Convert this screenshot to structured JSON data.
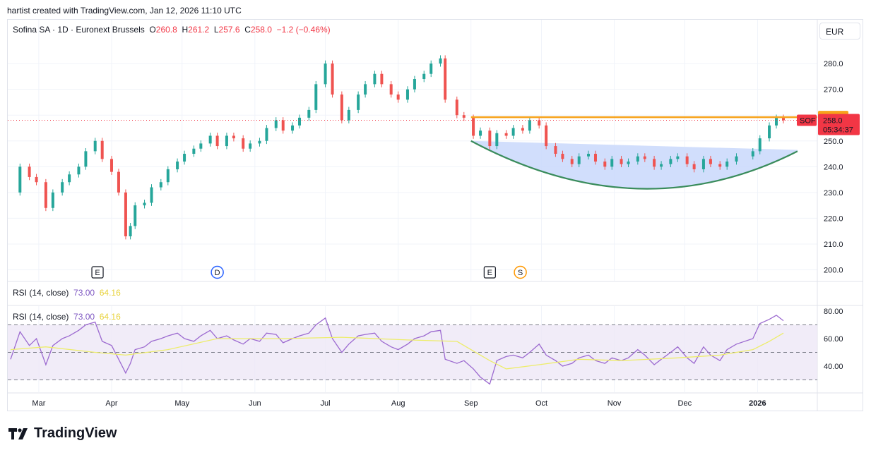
{
  "header": {
    "created_by": "hartist created with TradingView.com, Jan 12, 2026 11:10 UTC"
  },
  "legend": {
    "symbol": "Sofina SA · 1D · Euronext Brussels",
    "o_label": "O",
    "o_value": "260.8",
    "h_label": "H",
    "h_value": "261.2",
    "l_label": "L",
    "l_value": "257.6",
    "c_label": "C",
    "c_value": "258.0",
    "change": "−1.2 (−0.46%)"
  },
  "currency": "EUR",
  "rsi_legend": {
    "label": "RSI (14, close)",
    "rsi": "73.00",
    "ma": "64.16"
  },
  "badges": {
    "level": "259.2",
    "price": "258.0",
    "ticker": "SOF",
    "countdown": "05:34:37"
  },
  "events": [
    {
      "date": "2025-03-26",
      "letter": "E",
      "kind": "earnings"
    },
    {
      "date": "2025-05-16",
      "letter": "D",
      "kind": "dividend"
    },
    {
      "date": "2025-09-09",
      "letter": "E",
      "kind": "earnings"
    },
    {
      "date": "2025-09-22",
      "letter": "S",
      "kind": "split"
    }
  ],
  "brand": "TradingView",
  "colors": {
    "up": "#26a69a",
    "down": "#ef5350",
    "resistance": "#f7a21b",
    "cup_line": "#3a8c5c",
    "cup_fill": "#c9d8fb",
    "rsi": "#9c6ad0",
    "rsi_ma": "#eded6a",
    "rsi_band": "#ede7f6",
    "price_badge": "#f23645"
  },
  "chart_data": {
    "type": "candlestick",
    "x_labels": [
      "Mar",
      "Apr",
      "May",
      "Jun",
      "Jul",
      "Aug",
      "Sep",
      "Oct",
      "Nov",
      "Dec",
      "2026"
    ],
    "x_label_dates": [
      "2025-03-01",
      "2025-04-01",
      "2025-05-01",
      "2025-06-01",
      "2025-07-01",
      "2025-08-01",
      "2025-09-01",
      "2025-10-01",
      "2025-11-01",
      "2025-12-01",
      "2026-01-01"
    ],
    "price_ticks": [
      200.0,
      210.0,
      220.0,
      230.0,
      240.0,
      250.0,
      260.0,
      270.0,
      280.0
    ],
    "price_tick_labels": [
      "200.0",
      "210.0",
      "220.0",
      "230.0",
      "240.0",
      "250.0",
      "260.0",
      "270.0",
      "280.0"
    ],
    "rsi_ticks": [
      40.0,
      60.0,
      80.0
    ],
    "rsi_tick_labels": [
      "40.00",
      "60.00",
      "80.00"
    ],
    "rsi_levels": [
      30,
      50,
      70
    ],
    "resistance_level": 259.2,
    "resistance_start": "2025-09-01",
    "close_series": [
      [
        "2025-02-17",
        230
      ],
      [
        "2025-02-21",
        240
      ],
      [
        "2025-02-25",
        236
      ],
      [
        "2025-02-28",
        234
      ],
      [
        "2025-03-04",
        224
      ],
      [
        "2025-03-07",
        230
      ],
      [
        "2025-03-11",
        234
      ],
      [
        "2025-03-14",
        237
      ],
      [
        "2025-03-18",
        240
      ],
      [
        "2025-03-21",
        246
      ],
      [
        "2025-03-25",
        250
      ],
      [
        "2025-03-28",
        243
      ],
      [
        "2025-04-01",
        238
      ],
      [
        "2025-04-04",
        230
      ],
      [
        "2025-04-07",
        213
      ],
      [
        "2025-04-09",
        217
      ],
      [
        "2025-04-11",
        225
      ],
      [
        "2025-04-15",
        226
      ],
      [
        "2025-04-18",
        232
      ],
      [
        "2025-04-22",
        234
      ],
      [
        "2025-04-25",
        239
      ],
      [
        "2025-04-29",
        242
      ],
      [
        "2025-05-02",
        245
      ],
      [
        "2025-05-06",
        247
      ],
      [
        "2025-05-09",
        249
      ],
      [
        "2025-05-13",
        252
      ],
      [
        "2025-05-16",
        248
      ],
      [
        "2025-05-20",
        252
      ],
      [
        "2025-05-23",
        251
      ],
      [
        "2025-05-27",
        247
      ],
      [
        "2025-05-30",
        249
      ],
      [
        "2025-06-03",
        250
      ],
      [
        "2025-06-06",
        255
      ],
      [
        "2025-06-10",
        258
      ],
      [
        "2025-06-13",
        254
      ],
      [
        "2025-06-17",
        256
      ],
      [
        "2025-06-20",
        259
      ],
      [
        "2025-06-24",
        262
      ],
      [
        "2025-06-27",
        272
      ],
      [
        "2025-07-01",
        280
      ],
      [
        "2025-07-04",
        268
      ],
      [
        "2025-07-08",
        258
      ],
      [
        "2025-07-11",
        262
      ],
      [
        "2025-07-15",
        268
      ],
      [
        "2025-07-18",
        272
      ],
      [
        "2025-07-22",
        276
      ],
      [
        "2025-07-25",
        272
      ],
      [
        "2025-07-29",
        268
      ],
      [
        "2025-08-01",
        266
      ],
      [
        "2025-08-05",
        270
      ],
      [
        "2025-08-08",
        274
      ],
      [
        "2025-08-12",
        276
      ],
      [
        "2025-08-15",
        280
      ],
      [
        "2025-08-19",
        282
      ],
      [
        "2025-08-21",
        266
      ],
      [
        "2025-08-26",
        260
      ],
      [
        "2025-08-29",
        259
      ],
      [
        "2025-09-02",
        252
      ],
      [
        "2025-09-05",
        254
      ],
      [
        "2025-09-09",
        248
      ],
      [
        "2025-09-12",
        253
      ],
      [
        "2025-09-16",
        252
      ],
      [
        "2025-09-19",
        255
      ],
      [
        "2025-09-23",
        254
      ],
      [
        "2025-09-26",
        258
      ],
      [
        "2025-09-30",
        256
      ],
      [
        "2025-10-03",
        248
      ],
      [
        "2025-10-07",
        245
      ],
      [
        "2025-10-10",
        243
      ],
      [
        "2025-10-14",
        241
      ],
      [
        "2025-10-17",
        244
      ],
      [
        "2025-10-21",
        245
      ],
      [
        "2025-10-24",
        242
      ],
      [
        "2025-10-28",
        240
      ],
      [
        "2025-10-31",
        243
      ],
      [
        "2025-11-04",
        241
      ],
      [
        "2025-11-07",
        242
      ],
      [
        "2025-11-11",
        244
      ],
      [
        "2025-11-14",
        243
      ],
      [
        "2025-11-18",
        240
      ],
      [
        "2025-11-21",
        241
      ],
      [
        "2025-11-25",
        243
      ],
      [
        "2025-11-28",
        244
      ],
      [
        "2025-12-02",
        241
      ],
      [
        "2025-12-05",
        239
      ],
      [
        "2025-12-09",
        243
      ],
      [
        "2025-12-12",
        241
      ],
      [
        "2025-12-16",
        240
      ],
      [
        "2025-12-19",
        242
      ],
      [
        "2025-12-23",
        244
      ],
      [
        "2025-12-30",
        246
      ],
      [
        "2026-01-02",
        251
      ],
      [
        "2026-01-06",
        256
      ],
      [
        "2026-01-09",
        259
      ],
      [
        "2026-01-12",
        258
      ]
    ],
    "rsi_series": [
      [
        "2025-02-17",
        45
      ],
      [
        "2025-02-21",
        65
      ],
      [
        "2025-02-25",
        55
      ],
      [
        "2025-02-28",
        60
      ],
      [
        "2025-03-04",
        41
      ],
      [
        "2025-03-07",
        55
      ],
      [
        "2025-03-11",
        60
      ],
      [
        "2025-03-14",
        62
      ],
      [
        "2025-03-18",
        66
      ],
      [
        "2025-03-21",
        70
      ],
      [
        "2025-03-25",
        72
      ],
      [
        "2025-03-28",
        58
      ],
      [
        "2025-04-01",
        55
      ],
      [
        "2025-04-04",
        45
      ],
      [
        "2025-04-07",
        35
      ],
      [
        "2025-04-09",
        42
      ],
      [
        "2025-04-11",
        52
      ],
      [
        "2025-04-15",
        54
      ],
      [
        "2025-04-18",
        58
      ],
      [
        "2025-04-22",
        60
      ],
      [
        "2025-04-25",
        62
      ],
      [
        "2025-04-29",
        64
      ],
      [
        "2025-05-02",
        60
      ],
      [
        "2025-05-06",
        58
      ],
      [
        "2025-05-09",
        62
      ],
      [
        "2025-05-13",
        66
      ],
      [
        "2025-05-16",
        60
      ],
      [
        "2025-05-20",
        62
      ],
      [
        "2025-05-23",
        59
      ],
      [
        "2025-05-27",
        56
      ],
      [
        "2025-05-30",
        60
      ],
      [
        "2025-06-03",
        58
      ],
      [
        "2025-06-06",
        64
      ],
      [
        "2025-06-10",
        63
      ],
      [
        "2025-06-13",
        57
      ],
      [
        "2025-06-17",
        60
      ],
      [
        "2025-06-20",
        62
      ],
      [
        "2025-06-24",
        64
      ],
      [
        "2025-06-27",
        70
      ],
      [
        "2025-07-01",
        75
      ],
      [
        "2025-07-04",
        60
      ],
      [
        "2025-07-08",
        50
      ],
      [
        "2025-07-11",
        56
      ],
      [
        "2025-07-15",
        62
      ],
      [
        "2025-07-18",
        63
      ],
      [
        "2025-07-22",
        64
      ],
      [
        "2025-07-25",
        58
      ],
      [
        "2025-07-29",
        54
      ],
      [
        "2025-08-01",
        52
      ],
      [
        "2025-08-05",
        56
      ],
      [
        "2025-08-08",
        60
      ],
      [
        "2025-08-12",
        62
      ],
      [
        "2025-08-15",
        65
      ],
      [
        "2025-08-19",
        66
      ],
      [
        "2025-08-21",
        45
      ],
      [
        "2025-08-26",
        42
      ],
      [
        "2025-08-29",
        44
      ],
      [
        "2025-09-02",
        38
      ],
      [
        "2025-09-05",
        32
      ],
      [
        "2025-09-09",
        27
      ],
      [
        "2025-09-12",
        44
      ],
      [
        "2025-09-16",
        47
      ],
      [
        "2025-09-19",
        48
      ],
      [
        "2025-09-23",
        46
      ],
      [
        "2025-09-26",
        50
      ],
      [
        "2025-09-30",
        56
      ],
      [
        "2025-10-03",
        48
      ],
      [
        "2025-10-07",
        44
      ],
      [
        "2025-10-10",
        40
      ],
      [
        "2025-10-14",
        42
      ],
      [
        "2025-10-17",
        46
      ],
      [
        "2025-10-21",
        48
      ],
      [
        "2025-10-24",
        44
      ],
      [
        "2025-10-28",
        42
      ],
      [
        "2025-10-31",
        46
      ],
      [
        "2025-11-04",
        44
      ],
      [
        "2025-11-07",
        46
      ],
      [
        "2025-11-11",
        52
      ],
      [
        "2025-11-14",
        48
      ],
      [
        "2025-11-18",
        41
      ],
      [
        "2025-11-21",
        45
      ],
      [
        "2025-11-25",
        50
      ],
      [
        "2025-11-28",
        54
      ],
      [
        "2025-12-02",
        46
      ],
      [
        "2025-12-05",
        42
      ],
      [
        "2025-12-09",
        54
      ],
      [
        "2025-12-12",
        48
      ],
      [
        "2025-12-16",
        44
      ],
      [
        "2025-12-19",
        52
      ],
      [
        "2025-12-23",
        56
      ],
      [
        "2025-12-30",
        60
      ],
      [
        "2026-01-02",
        71
      ],
      [
        "2026-01-06",
        74
      ],
      [
        "2026-01-09",
        77
      ],
      [
        "2026-01-12",
        73
      ]
    ],
    "rsi_ma_series": [
      [
        "2025-02-17",
        52
      ],
      [
        "2025-03-04",
        54
      ],
      [
        "2025-03-25",
        50
      ],
      [
        "2025-04-07",
        48
      ],
      [
        "2025-04-25",
        52
      ],
      [
        "2025-05-16",
        60
      ],
      [
        "2025-06-13",
        60
      ],
      [
        "2025-07-08",
        61
      ],
      [
        "2025-08-05",
        59
      ],
      [
        "2025-08-26",
        58
      ],
      [
        "2025-09-09",
        44
      ],
      [
        "2025-09-16",
        38
      ],
      [
        "2025-09-30",
        41
      ],
      [
        "2025-10-17",
        45
      ],
      [
        "2025-11-04",
        44
      ],
      [
        "2025-11-28",
        46
      ],
      [
        "2025-12-16",
        48
      ],
      [
        "2025-12-30",
        52
      ],
      [
        "2026-01-06",
        58
      ],
      [
        "2026-01-12",
        64
      ]
    ],
    "cup": {
      "start": [
        "2025-09-01",
        250
      ],
      "bottom": [
        "2025-11-12",
        231.5
      ],
      "end": [
        "2026-01-18",
        246
      ],
      "rim_start": [
        "2025-09-01",
        250
      ],
      "rim_end": [
        "2026-01-18",
        246.5
      ]
    }
  }
}
